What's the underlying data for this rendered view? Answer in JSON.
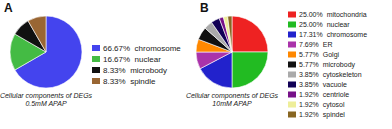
{
  "chart_data": [
    {
      "type": "pie",
      "title": "Cellular components of DEGs\n0.5mM APAP",
      "annotations": [
        "A"
      ],
      "categories": [
        "66.67%  chromosome",
        "16.67%  nuclear",
        "8.33%  microbody",
        "8.33%  spindle"
      ],
      "values": [
        66.67,
        16.67,
        8.33,
        8.33
      ],
      "colors": [
        "#4444ee",
        "#44bb44",
        "#111111",
        "#996633"
      ],
      "legend": "right"
    },
    {
      "type": "pie",
      "title": "Cellular components of DEGs\n10mM APAP",
      "annotations": [
        "B"
      ],
      "categories": [
        "25.00%  mitochondria",
        "25.00%  nuclear",
        "17.31%  chromosome",
        "7.69%  ER",
        "5.77%  Golgi",
        "5.77%  microbody",
        "3.85%  cytoskeleton",
        "3.85%  vacuole",
        "1.92%  centriole",
        "1.92%  cytosol",
        "1.92%  spindel"
      ],
      "values": [
        25.0,
        25.0,
        17.31,
        7.69,
        5.77,
        5.77,
        3.85,
        3.85,
        1.92,
        1.92,
        1.92
      ],
      "colors": [
        "#ee2222",
        "#22bb22",
        "#2222cc",
        "#aa33aa",
        "#ff8800",
        "#111111",
        "#aaaaaa",
        "#110055",
        "#771188",
        "#eeee99",
        "#886622"
      ],
      "legend": "right"
    }
  ]
}
